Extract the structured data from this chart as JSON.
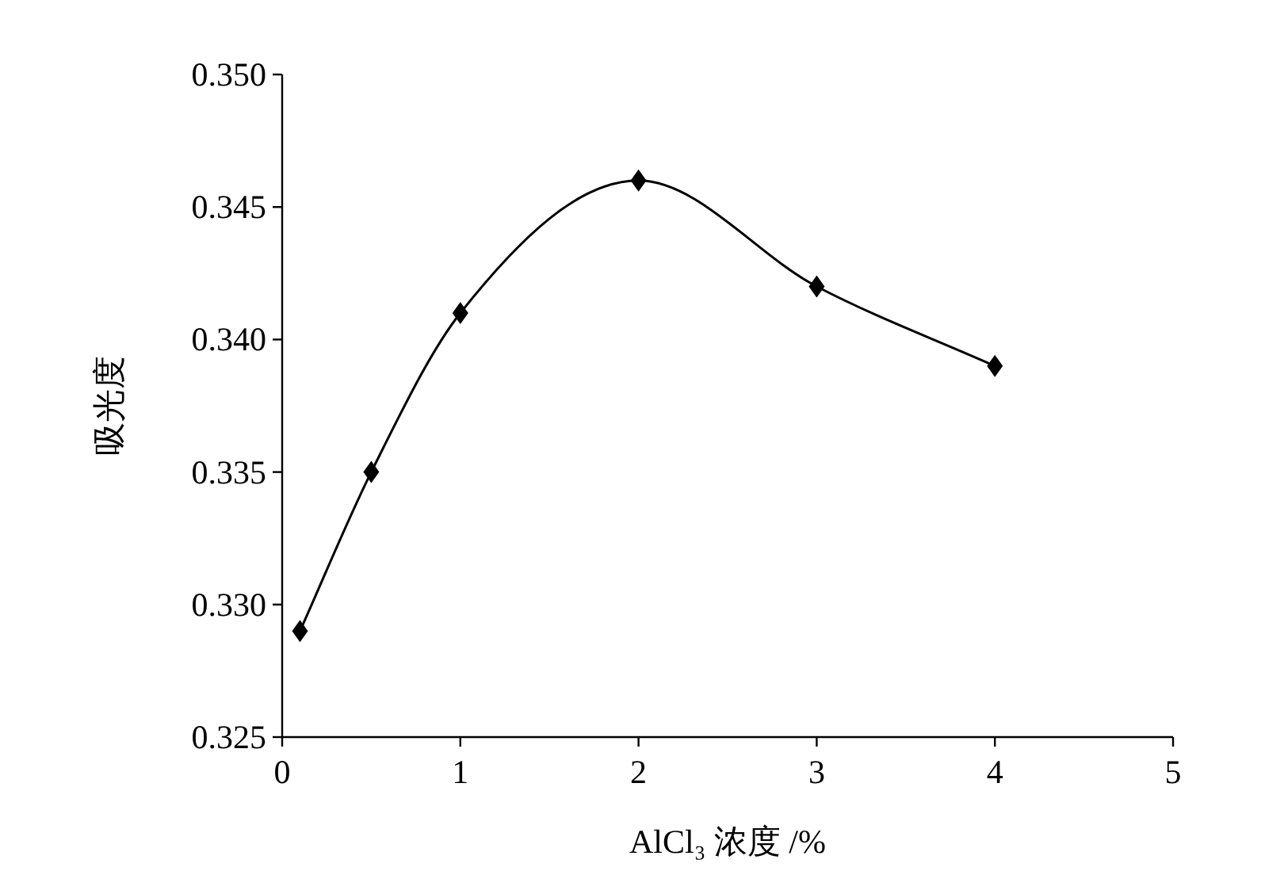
{
  "chart_data": {
    "type": "line",
    "xlabel": "AlCl₃ 浓度 /%",
    "ylabel": "吸光度",
    "x": [
      0.1,
      0.5,
      1,
      2,
      3,
      4
    ],
    "series": [
      {
        "color": "#000000",
        "values": [
          0.329,
          0.335,
          0.341,
          0.346,
          0.342,
          0.339
        ]
      }
    ],
    "xlim": [
      0,
      5
    ],
    "xticks": [
      0,
      1,
      2,
      3,
      4,
      5
    ],
    "ylim": [
      0.325,
      0.35
    ],
    "yticks": [
      {
        "value": 0.325,
        "label": "0.325"
      },
      {
        "value": 0.33,
        "label": "0.330"
      },
      {
        "value": 0.335,
        "label": "0.335"
      },
      {
        "value": 0.34,
        "label": "0.340"
      },
      {
        "value": 0.345,
        "label": "0.345"
      },
      {
        "value": 0.35,
        "label": "0.350"
      }
    ],
    "marker": "diamond",
    "line_style": "solid",
    "grid": false
  }
}
